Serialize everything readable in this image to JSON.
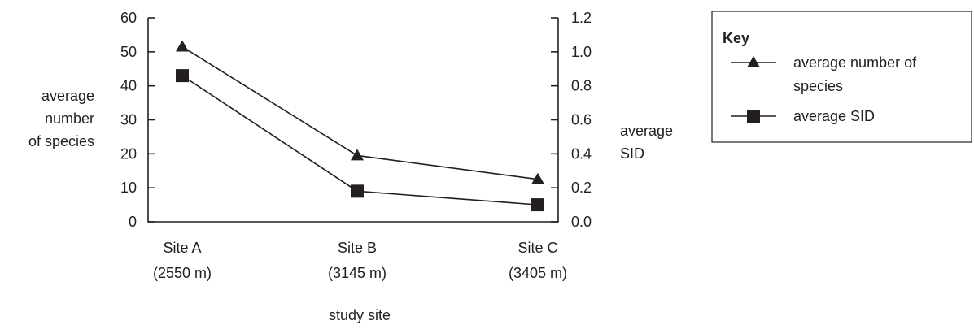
{
  "chart_data": {
    "type": "line",
    "categories": [
      {
        "name": "Site A",
        "detail": "(2550 m)"
      },
      {
        "name": "Site B",
        "detail": "(3145 m)"
      },
      {
        "name": "Site C",
        "detail": "(3405 m)"
      }
    ],
    "xlabel": "study site",
    "ylabel_left": [
      "average",
      "number",
      "of species"
    ],
    "ylabel_right": [
      "average",
      "SID"
    ],
    "ylim_left": [
      0,
      60
    ],
    "yticks_left": [
      "0",
      "10",
      "20",
      "30",
      "40",
      "50",
      "60"
    ],
    "ylim_right": [
      0,
      1.2
    ],
    "yticks_right": [
      "0.0",
      "0.2",
      "0.4",
      "0.6",
      "0.8",
      "1.0",
      "1.2"
    ],
    "grid": false,
    "legend_position": "top-right",
    "series": [
      {
        "name": "average number of species",
        "legend_lines": [
          "average number of",
          "species"
        ],
        "axis": "left",
        "marker": "triangle",
        "values": [
          51.5,
          19.5,
          12.5
        ]
      },
      {
        "name": "average SID",
        "legend_lines": [
          "average SID"
        ],
        "axis": "right",
        "marker": "square",
        "values": [
          0.86,
          0.18,
          0.1
        ]
      }
    ],
    "legend_title": "Key",
    "colors": {
      "line": "#231f20",
      "background": "#ffffff"
    }
  }
}
